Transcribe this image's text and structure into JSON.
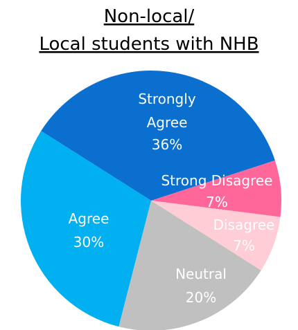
{
  "chart_data": {
    "type": "pie",
    "title": [
      "Non-local/",
      "Local students with NHB"
    ],
    "categories": [
      "Strongly Agree",
      "Strong Disagree",
      "Disagree",
      "Neutral",
      "Agree"
    ],
    "values": [
      36,
      7,
      7,
      20,
      30
    ],
    "value_labels": [
      "36%",
      "7%",
      "7%",
      "20%",
      "30%"
    ],
    "colors": [
      "#0b6fd0",
      "#ff6699",
      "#ffcdd6",
      "#c0c0c0",
      "#00b0f0"
    ]
  }
}
